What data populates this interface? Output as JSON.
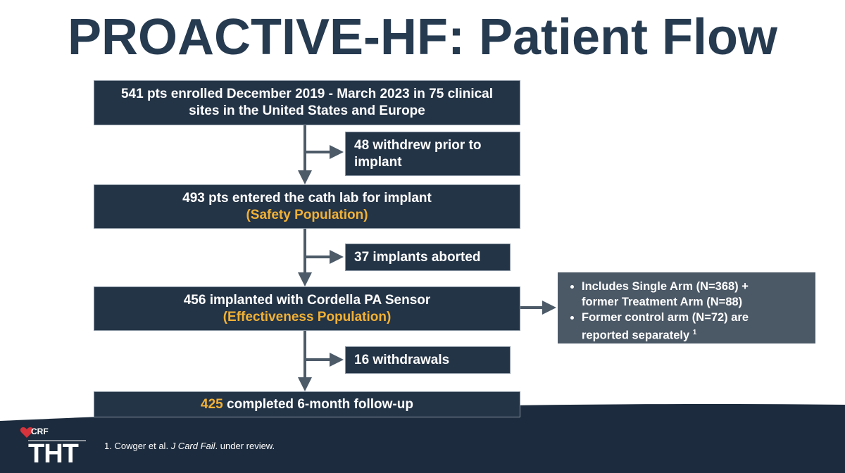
{
  "title": "PROACTIVE-HF: Patient Flow",
  "main_boxes": [
    {
      "lines": [
        "541 pts enrolled December 2019 - March 2023 in 75 clinical",
        "sites in the United States and Europe"
      ]
    },
    {
      "text": "493 pts entered the cath lab for implant",
      "population": "(Safety Population)"
    },
    {
      "text": "456 implanted with Cordella PA Sensor",
      "population": "(Effectiveness Population)"
    },
    {
      "count": "425",
      "text": "completed 6-month follow-up"
    }
  ],
  "exclusions": [
    {
      "lines": [
        "48 withdrew prior to",
        "implant"
      ]
    },
    {
      "lines": [
        "37 implants aborted"
      ]
    },
    {
      "lines": [
        "16 withdrawals"
      ]
    }
  ],
  "note": {
    "bullets": [
      {
        "lines": [
          "Includes Single Arm (N=368) +",
          "former Treatment Arm (N=88)"
        ]
      },
      {
        "lines": [
          "Former control arm (N=72) are",
          "reported separately"
        ],
        "ref": "1"
      }
    ]
  },
  "footnote": {
    "number": "1.",
    "authors": "Cowger et al.",
    "journal": "J Card Fail",
    "status": ". under review."
  },
  "logo": {
    "org": "CRF",
    "brand": "THT"
  }
}
